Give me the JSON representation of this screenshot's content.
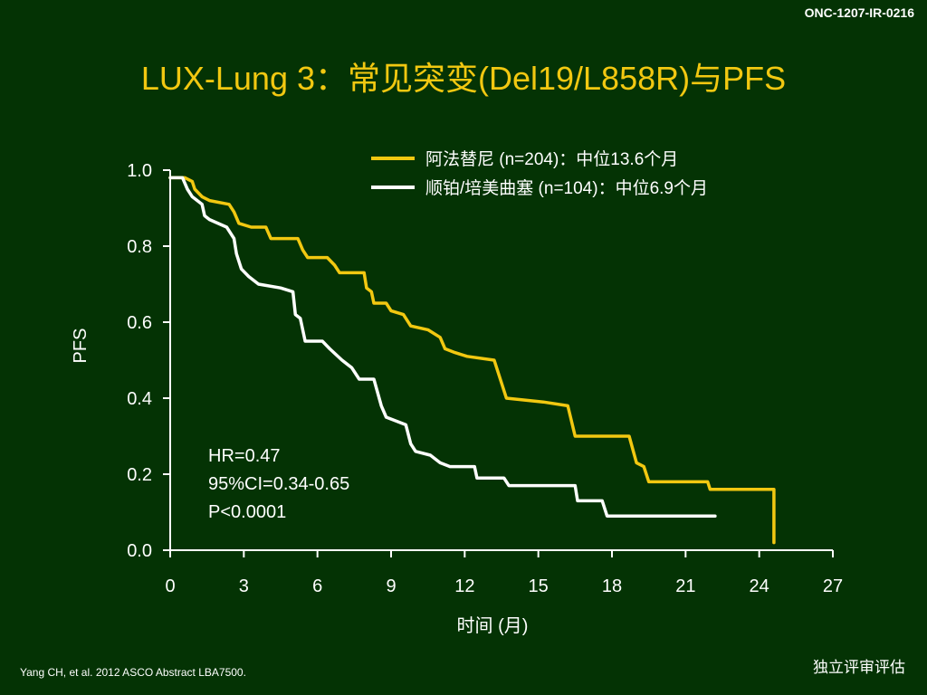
{
  "header": {
    "code": "ONC-1207-IR-0216",
    "title": "LUX-Lung 3：常见突变(Del19/L858R)与PFS"
  },
  "chart_data": {
    "type": "line",
    "xlabel": "时间 (月)",
    "ylabel": "PFS",
    "xticks": [
      0,
      3,
      6,
      9,
      12,
      15,
      18,
      21,
      24,
      27
    ],
    "yticks": [
      "0.0",
      "0.2",
      "0.4",
      "0.6",
      "0.8",
      "1.0"
    ],
    "xlim": [
      0,
      27
    ],
    "ylim": [
      0,
      1
    ],
    "legend_position": "top-right",
    "series": [
      {
        "name": "阿法替尼 (n=204)：中位13.6个月",
        "color": "#f2c811",
        "points": [
          [
            0,
            0.98
          ],
          [
            0.6,
            0.98
          ],
          [
            0.9,
            0.97
          ],
          [
            1.0,
            0.95
          ],
          [
            1.3,
            0.93
          ],
          [
            1.6,
            0.92
          ],
          [
            2.4,
            0.91
          ],
          [
            2.6,
            0.89
          ],
          [
            2.8,
            0.86
          ],
          [
            3.3,
            0.85
          ],
          [
            3.9,
            0.85
          ],
          [
            4.1,
            0.82
          ],
          [
            5.2,
            0.82
          ],
          [
            5.4,
            0.79
          ],
          [
            5.6,
            0.77
          ],
          [
            6.4,
            0.77
          ],
          [
            6.7,
            0.75
          ],
          [
            6.9,
            0.73
          ],
          [
            7.9,
            0.73
          ],
          [
            8.0,
            0.69
          ],
          [
            8.2,
            0.68
          ],
          [
            8.3,
            0.65
          ],
          [
            8.8,
            0.65
          ],
          [
            9.0,
            0.63
          ],
          [
            9.5,
            0.62
          ],
          [
            9.8,
            0.59
          ],
          [
            10.5,
            0.58
          ],
          [
            11.0,
            0.56
          ],
          [
            11.2,
            0.53
          ],
          [
            11.6,
            0.52
          ],
          [
            12.1,
            0.51
          ],
          [
            13.2,
            0.5
          ],
          [
            13.7,
            0.4
          ],
          [
            15.2,
            0.39
          ],
          [
            16.2,
            0.38
          ],
          [
            16.5,
            0.3
          ],
          [
            18.7,
            0.3
          ],
          [
            19.0,
            0.23
          ],
          [
            19.3,
            0.22
          ],
          [
            19.5,
            0.18
          ],
          [
            21.9,
            0.18
          ],
          [
            22.0,
            0.16
          ],
          [
            24.6,
            0.16
          ],
          [
            24.6,
            0.02
          ]
        ]
      },
      {
        "name": "顺铂/培美曲塞 (n=104)：中位6.9个月",
        "color": "#ffffff",
        "points": [
          [
            0,
            0.98
          ],
          [
            0.5,
            0.98
          ],
          [
            0.7,
            0.95
          ],
          [
            0.9,
            0.93
          ],
          [
            1.3,
            0.91
          ],
          [
            1.4,
            0.88
          ],
          [
            1.6,
            0.87
          ],
          [
            2.3,
            0.85
          ],
          [
            2.6,
            0.82
          ],
          [
            2.7,
            0.78
          ],
          [
            2.9,
            0.74
          ],
          [
            3.2,
            0.72
          ],
          [
            3.6,
            0.7
          ],
          [
            4.5,
            0.69
          ],
          [
            5.0,
            0.68
          ],
          [
            5.1,
            0.62
          ],
          [
            5.3,
            0.61
          ],
          [
            5.5,
            0.55
          ],
          [
            6.2,
            0.55
          ],
          [
            6.5,
            0.53
          ],
          [
            7.0,
            0.5
          ],
          [
            7.4,
            0.48
          ],
          [
            7.7,
            0.45
          ],
          [
            8.3,
            0.45
          ],
          [
            8.6,
            0.38
          ],
          [
            8.8,
            0.35
          ],
          [
            9.6,
            0.33
          ],
          [
            9.8,
            0.28
          ],
          [
            10.0,
            0.26
          ],
          [
            10.6,
            0.25
          ],
          [
            11.0,
            0.23
          ],
          [
            11.4,
            0.22
          ],
          [
            12.4,
            0.22
          ],
          [
            12.5,
            0.19
          ],
          [
            13.6,
            0.19
          ],
          [
            13.8,
            0.17
          ],
          [
            16.5,
            0.17
          ],
          [
            16.6,
            0.13
          ],
          [
            17.6,
            0.13
          ],
          [
            17.8,
            0.09
          ],
          [
            22.2,
            0.09
          ]
        ]
      }
    ],
    "annotations": [
      "HR=0.47",
      "95%CI=0.34-0.65",
      "P<0.0001"
    ]
  },
  "footer": {
    "reference": "Yang CH, et al. 2012 ASCO Abstract LBA7500.",
    "note": "独立评审评估"
  }
}
